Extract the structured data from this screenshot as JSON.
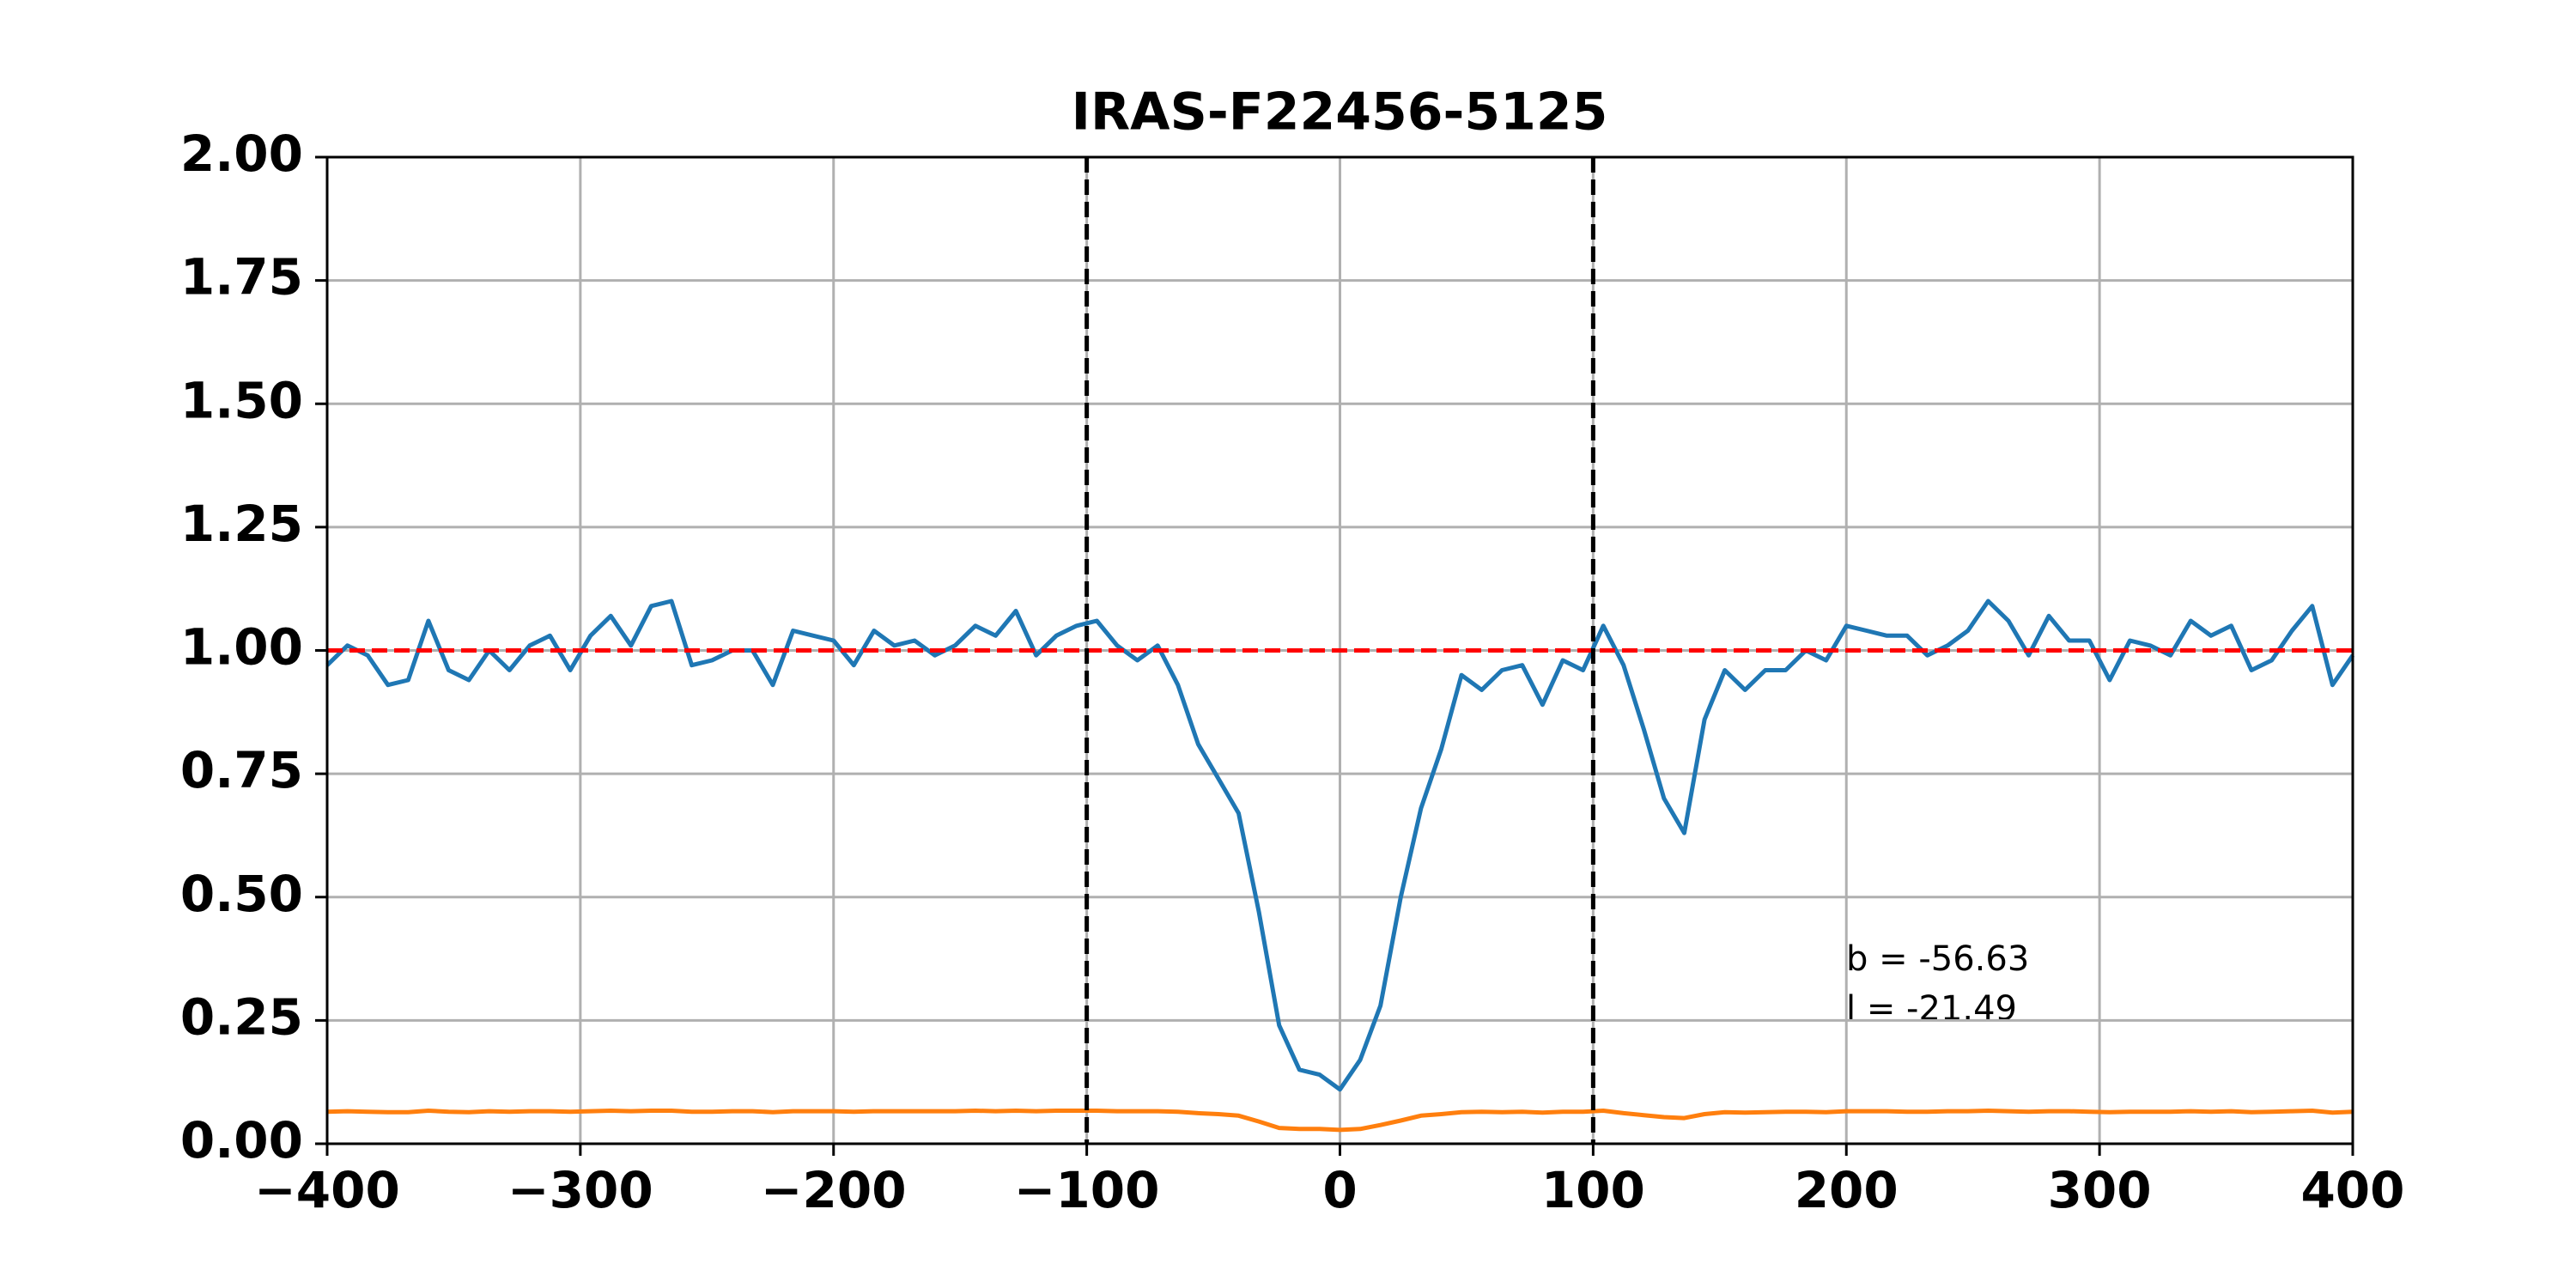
{
  "chart_data": {
    "type": "line",
    "title": "IRAS-F22456-5125",
    "x": [
      -400,
      -392,
      -384,
      -376,
      -368,
      -360,
      -352,
      -344,
      -336,
      -328,
      -320,
      -312,
      -304,
      -296,
      -288,
      -280,
      -272,
      -264,
      -256,
      -248,
      -240,
      -232,
      -224,
      -216,
      -208,
      -200,
      -192,
      -184,
      -176,
      -168,
      -160,
      -152,
      -144,
      -136,
      -128,
      -120,
      -112,
      -104,
      -96,
      -88,
      -80,
      -72,
      -64,
      -56,
      -48,
      -40,
      -32,
      -24,
      -16,
      -8,
      0,
      8,
      16,
      24,
      32,
      40,
      48,
      56,
      64,
      72,
      80,
      88,
      96,
      104,
      112,
      120,
      128,
      136,
      144,
      152,
      160,
      168,
      176,
      184,
      192,
      200,
      208,
      216,
      224,
      232,
      240,
      248,
      256,
      264,
      272,
      280,
      288,
      296,
      304,
      312,
      320,
      328,
      336,
      344,
      352,
      360,
      368,
      376,
      384,
      392,
      400
    ],
    "series": [
      {
        "color": "#1f77b4",
        "values": [
          0.97,
          1.01,
          0.99,
          0.93,
          0.94,
          1.06,
          0.96,
          0.94,
          1.0,
          0.96,
          1.01,
          1.03,
          0.96,
          1.03,
          1.07,
          1.01,
          1.09,
          1.1,
          0.97,
          0.98,
          1.0,
          1.0,
          0.93,
          1.04,
          1.03,
          1.02,
          0.97,
          1.04,
          1.01,
          1.02,
          0.99,
          1.01,
          1.05,
          1.03,
          1.08,
          0.99,
          1.03,
          1.05,
          1.06,
          1.01,
          0.98,
          1.01,
          0.93,
          0.81,
          0.74,
          0.67,
          0.47,
          0.24,
          0.15,
          0.14,
          0.11,
          0.17,
          0.28,
          0.5,
          0.68,
          0.8,
          0.95,
          0.92,
          0.96,
          0.97,
          0.89,
          0.98,
          0.96,
          1.05,
          0.97,
          0.84,
          0.7,
          0.63,
          0.86,
          0.96,
          0.92,
          0.96,
          0.96,
          1.0,
          0.98,
          1.05,
          1.04,
          1.03,
          1.03,
          0.99,
          1.01,
          1.04,
          1.1,
          1.06,
          0.99,
          1.07,
          1.02,
          1.02,
          0.94,
          1.02,
          1.01,
          0.99,
          1.06,
          1.03,
          1.05,
          0.96,
          0.98,
          1.04,
          1.09,
          0.93,
          0.99
        ]
      },
      {
        "color": "#ff7f0e",
        "values": [
          0.065,
          0.066,
          0.065,
          0.064,
          0.064,
          0.067,
          0.065,
          0.064,
          0.066,
          0.065,
          0.066,
          0.066,
          0.065,
          0.066,
          0.067,
          0.066,
          0.067,
          0.067,
          0.065,
          0.065,
          0.066,
          0.066,
          0.064,
          0.066,
          0.066,
          0.066,
          0.065,
          0.066,
          0.066,
          0.066,
          0.066,
          0.066,
          0.067,
          0.066,
          0.067,
          0.066,
          0.067,
          0.067,
          0.067,
          0.066,
          0.066,
          0.066,
          0.065,
          0.062,
          0.06,
          0.057,
          0.045,
          0.032,
          0.03,
          0.03,
          0.028,
          0.03,
          0.038,
          0.047,
          0.057,
          0.06,
          0.064,
          0.065,
          0.064,
          0.065,
          0.063,
          0.065,
          0.065,
          0.067,
          0.062,
          0.058,
          0.054,
          0.052,
          0.06,
          0.064,
          0.063,
          0.064,
          0.065,
          0.065,
          0.064,
          0.066,
          0.066,
          0.066,
          0.065,
          0.065,
          0.066,
          0.066,
          0.067,
          0.066,
          0.065,
          0.066,
          0.066,
          0.065,
          0.064,
          0.065,
          0.065,
          0.065,
          0.066,
          0.065,
          0.066,
          0.064,
          0.065,
          0.066,
          0.067,
          0.063,
          0.065
        ]
      }
    ],
    "hline": 1,
    "hline_color": "#ff0000",
    "vlines": [
      -100,
      100
    ],
    "vline_color": "#000000",
    "annotations": [
      "b = -56.63",
      "l = -21.49"
    ],
    "xlim": [
      -400,
      400
    ],
    "xticks": [
      {
        "value": -400,
        "label": "−400"
      },
      {
        "value": -300,
        "label": "−300"
      },
      {
        "value": -200,
        "label": "−200"
      },
      {
        "value": -100,
        "label": "−100"
      },
      0,
      100,
      200,
      300,
      400
    ],
    "ylim": [
      0,
      2
    ],
    "yticks": [
      {
        "value": 0,
        "label": "0.00"
      },
      {
        "value": 0.25,
        "label": "0.25"
      },
      {
        "value": 0.5,
        "label": "0.50"
      },
      {
        "value": 0.75,
        "label": "0.75"
      },
      {
        "value": 1,
        "label": "1.00"
      },
      {
        "value": 1.25,
        "label": "1.25"
      },
      {
        "value": 1.5,
        "label": "1.50"
      },
      {
        "value": 1.75,
        "label": "1.75"
      },
      {
        "value": 2,
        "label": "2.00"
      }
    ],
    "grid": true
  }
}
